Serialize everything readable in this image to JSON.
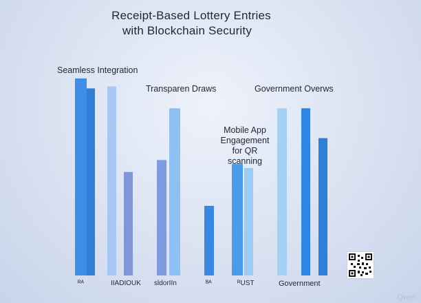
{
  "chart_data": {
    "type": "bar",
    "title_lines": [
      "Receipt-Based Lottery Entries",
      "with Blockchain Security"
    ],
    "annotations": [
      "Seamless Integration",
      "Transparen Draws",
      "Government Overws",
      "Mobile App\nEngagement\nfor QR scanning"
    ],
    "xtick_labels": [
      "ᴿᴬ",
      "IIADIOUK",
      "sldorIIn",
      "ᴮᴬ",
      "ᴿUST",
      "Government"
    ],
    "ylim": [
      0,
      100
    ],
    "grid": false,
    "legend": "none",
    "bars": [
      {
        "value": 99,
        "color": "#3d8ee6"
      },
      {
        "value": 94,
        "color": "#2f7fd9"
      },
      {
        "value": 95,
        "color": "#a7c6f2"
      },
      {
        "value": 52,
        "color": "#7f97d6"
      },
      {
        "value": 58,
        "color": "#7f9be0"
      },
      {
        "value": 84,
        "color": "#8ec0f1"
      },
      {
        "value": 35,
        "color": "#3a86e0"
      },
      {
        "value": 56,
        "color": "#4a9ce8"
      },
      {
        "value": 54,
        "color": "#9ccbf3"
      },
      {
        "value": 84,
        "color": "#a5d0f5"
      },
      {
        "value": 84,
        "color": "#2f85e3"
      },
      {
        "value": 69,
        "color": "#2f7fd9"
      }
    ]
  },
  "watermark": "Qwen"
}
